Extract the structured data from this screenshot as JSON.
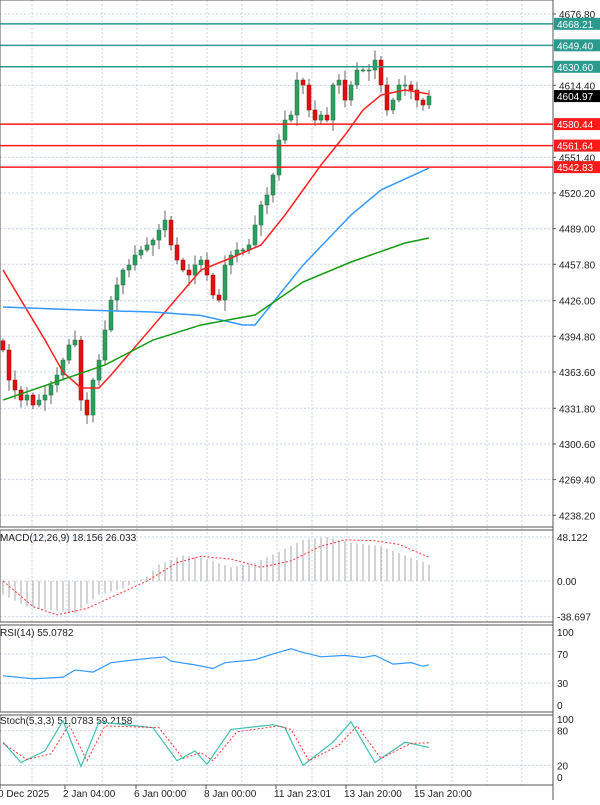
{
  "chart_data": [
    {
      "type": "candlestick",
      "panel": "price",
      "y_ticks": [
        "4676.80",
        "4614.40",
        "4551.40",
        "4520.20",
        "4489.00",
        "4457.80",
        "4426.00",
        "4394.80",
        "4363.60",
        "4331.80",
        "4300.60",
        "4269.40",
        "4238.20"
      ],
      "y_tick_values": [
        4676.8,
        4614.4,
        4551.4,
        4520.2,
        4489.0,
        4457.8,
        4426.0,
        4394.8,
        4363.6,
        4331.8,
        4300.6,
        4269.4,
        4238.2
      ],
      "ylim": [
        4230,
        4685
      ],
      "closes": [
        4382.8,
        4356.5,
        4347.8,
        4339,
        4343.4,
        4334.7,
        4339,
        4343.4,
        4352.2,
        4360.9,
        4374,
        4387.2,
        4391.5,
        4339,
        4325.9,
        4356.5,
        4374,
        4400.3,
        4426.5,
        4439.7,
        4452.8,
        4457.2,
        4465.9,
        4470.3,
        4474.7,
        4479,
        4487.8,
        4496.5,
        4474.7,
        4461.5,
        4452.8,
        4448.4,
        4457.2,
        4461.5,
        4448.4,
        4430.9,
        4426.5,
        4457.2,
        4465.9,
        4470.3,
        4470.3,
        4474.7,
        4492.2,
        4509.7,
        4518.4,
        4535.9,
        4566.5,
        4584,
        4588.4,
        4619,
        4614.7,
        4592.8,
        4584,
        4588.4,
        4584,
        4614.7,
        4619,
        4601.5,
        4614.7,
        4627.8,
        4627.8,
        4627.8,
        4636.5,
        4614.7,
        4592.8,
        4601.5,
        4614.7,
        4614.7,
        4610.3,
        4601.5,
        4597.2,
        4605
      ],
      "moving_averages": [
        {
          "color": "#ff2020",
          "points": [
            [
              0,
              4452.8
            ],
            [
              3,
              4426.5
            ],
            [
              7,
              4391.5
            ],
            [
              10,
              4363.5
            ],
            [
              13,
              4349.6
            ],
            [
              16,
              4349.6
            ],
            [
              18,
              4360.9
            ],
            [
              23,
              4391.5
            ],
            [
              28,
              4422.2
            ],
            [
              33,
              4452.8
            ],
            [
              38,
              4463.3
            ],
            [
              43,
              4474.7
            ],
            [
              47,
              4500.9
            ],
            [
              50,
              4522.8
            ],
            [
              53,
              4544.7
            ],
            [
              57,
              4570.9
            ],
            [
              60,
              4592.8
            ],
            [
              63,
              4605.9
            ],
            [
              67,
              4610.3
            ],
            [
              71,
              4606.8
            ]
          ]
        },
        {
          "color": "#3399ff",
          "points": [
            [
              0,
              4420.4
            ],
            [
              12,
              4418
            ],
            [
              25,
              4416
            ],
            [
              33,
              4413
            ],
            [
              40,
              4404.7
            ],
            [
              42,
              4404.7
            ],
            [
              50,
              4457
            ],
            [
              58,
              4500.9
            ],
            [
              63,
              4522.8
            ],
            [
              71,
              4542
            ]
          ]
        },
        {
          "color": "#139c13",
          "points": [
            [
              0,
              4339
            ],
            [
              17,
              4369.7
            ],
            [
              25,
              4391.5
            ],
            [
              33,
              4404.7
            ],
            [
              42,
              4413.4
            ],
            [
              50,
              4442.3
            ],
            [
              58,
              4459.8
            ],
            [
              67,
              4476.4
            ],
            [
              71,
              4480.8
            ]
          ]
        }
      ],
      "levels": [
        {
          "value": "4668.21",
          "color": "#2a9a8e"
        },
        {
          "value": "4649.40",
          "color": "#2a9a8e"
        },
        {
          "value": "4630.60",
          "color": "#2a9a8e"
        },
        {
          "value": "4580.44",
          "color": "#ff1a1a"
        },
        {
          "value": "4561.64",
          "color": "#ff1a1a"
        },
        {
          "value": "4542.83",
          "color": "#ff1a1a"
        }
      ],
      "current_price": "4604.97"
    },
    {
      "type": "bar",
      "panel": "macd",
      "label": "MACD(12,26,9) 18.156 26.033",
      "y_ticks": [
        "48.122",
        "0.00",
        "-38.697"
      ],
      "ylim": [
        -38.697,
        48.122
      ],
      "histogram_points": [
        [
          0,
          -15
        ],
        [
          4,
          -28
        ],
        [
          8,
          -32
        ],
        [
          12,
          -35
        ],
        [
          16,
          -15
        ],
        [
          20,
          -8
        ],
        [
          24,
          5
        ],
        [
          26,
          18
        ],
        [
          30,
          28
        ],
        [
          34,
          24
        ],
        [
          38,
          15
        ],
        [
          42,
          20
        ],
        [
          46,
          32
        ],
        [
          50,
          45
        ],
        [
          54,
          48
        ],
        [
          58,
          42
        ],
        [
          63,
          38
        ],
        [
          67,
          28
        ],
        [
          71,
          18
        ]
      ],
      "signal_points": [
        [
          0,
          0
        ],
        [
          5,
          -28
        ],
        [
          9,
          -37
        ],
        [
          14,
          -30
        ],
        [
          19,
          -15
        ],
        [
          24,
          0
        ],
        [
          29,
          20
        ],
        [
          33,
          27
        ],
        [
          38,
          24
        ],
        [
          43,
          15
        ],
        [
          48,
          22
        ],
        [
          53,
          38
        ],
        [
          57,
          45
        ],
        [
          62,
          44
        ],
        [
          66,
          40
        ],
        [
          71,
          26
        ]
      ],
      "signal_color": "#ff3333"
    },
    {
      "type": "line",
      "panel": "rsi",
      "label": "RSI(14) 55.0782",
      "y_ticks": [
        "100",
        "70",
        "30",
        "0"
      ],
      "ylim": [
        0,
        100
      ],
      "points": [
        [
          0,
          40
        ],
        [
          5,
          36
        ],
        [
          10,
          38
        ],
        [
          12,
          48
        ],
        [
          15,
          45
        ],
        [
          18,
          58
        ],
        [
          22,
          62
        ],
        [
          27,
          66
        ],
        [
          28,
          60
        ],
        [
          32,
          55
        ],
        [
          35,
          50
        ],
        [
          37,
          58
        ],
        [
          42,
          62
        ],
        [
          45,
          70
        ],
        [
          48,
          77
        ],
        [
          50,
          72
        ],
        [
          53,
          66
        ],
        [
          57,
          68
        ],
        [
          60,
          65
        ],
        [
          62,
          68
        ],
        [
          65,
          56
        ],
        [
          68,
          58
        ],
        [
          70,
          53
        ],
        [
          71,
          55
        ]
      ],
      "color": "#3399ff"
    },
    {
      "type": "line",
      "panel": "stochastic",
      "label": "Stoch(5,3,3) 51.0783 59.2158",
      "y_ticks": [
        "100",
        "80",
        "20",
        "0"
      ],
      "ylim": [
        0,
        100
      ],
      "main_points": [
        [
          0,
          60
        ],
        [
          3,
          25
        ],
        [
          7,
          45
        ],
        [
          10,
          97
        ],
        [
          13,
          18
        ],
        [
          16,
          95
        ],
        [
          25,
          85
        ],
        [
          29,
          28
        ],
        [
          32,
          45
        ],
        [
          34,
          22
        ],
        [
          38,
          82
        ],
        [
          45,
          90
        ],
        [
          47,
          85
        ],
        [
          50,
          20
        ],
        [
          55,
          60
        ],
        [
          58,
          95
        ],
        [
          62,
          25
        ],
        [
          67,
          60
        ],
        [
          71,
          51
        ]
      ],
      "signal_points": [
        [
          0,
          58
        ],
        [
          4,
          30
        ],
        [
          8,
          40
        ],
        [
          11,
          90
        ],
        [
          14,
          28
        ],
        [
          17,
          88
        ],
        [
          26,
          85
        ],
        [
          30,
          32
        ],
        [
          33,
          42
        ],
        [
          35,
          28
        ],
        [
          39,
          78
        ],
        [
          46,
          88
        ],
        [
          48,
          82
        ],
        [
          51,
          28
        ],
        [
          56,
          55
        ],
        [
          59,
          88
        ],
        [
          63,
          32
        ],
        [
          68,
          58
        ],
        [
          71,
          59
        ]
      ],
      "main_color": "#40c0b0",
      "signal_color": "#ff3333"
    }
  ],
  "time_axis": [
    "0 Dec 2025",
    "2 Jan 04:00",
    "6 Jan 00:00",
    "8 Jan 00:00",
    "11 Jan 23:01",
    "13 Jan 20:00",
    "15 Jan 20:00"
  ]
}
